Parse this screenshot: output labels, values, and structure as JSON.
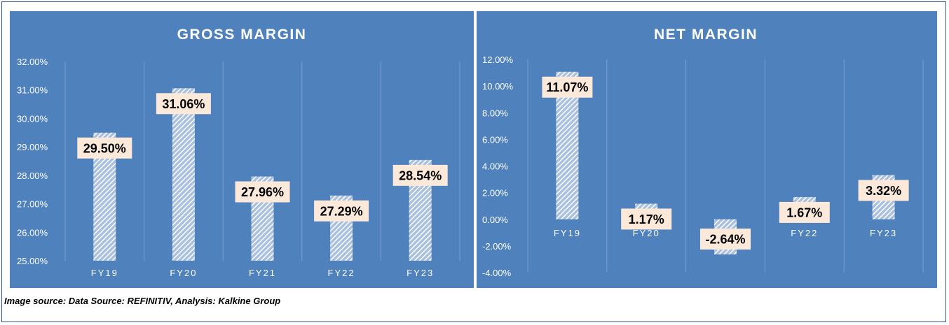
{
  "source_note": "Image source: Data Source: REFINITIV, Analysis: Kalkine Group",
  "colors": {
    "panel_bg": "#4f81bd",
    "gridline": "#7aa0cf",
    "bar_stripe": "#ffffff",
    "bar_stripe_bg": "#a9c0e0",
    "label_bg": "#fde9d9",
    "text": "#ffffff"
  },
  "chart_data": [
    {
      "type": "bar",
      "title": "GROSS MARGIN",
      "categories": [
        "FY19",
        "FY20",
        "FY21",
        "FY22",
        "FY23"
      ],
      "values": [
        29.5,
        31.06,
        27.96,
        27.29,
        28.54
      ],
      "data_labels": [
        "29.50%",
        "31.06%",
        "27.96%",
        "27.29%",
        "28.54%"
      ],
      "ylim": [
        25,
        32
      ],
      "yticks": [
        "25.00%",
        "26.00%",
        "27.00%",
        "28.00%",
        "29.00%",
        "30.00%",
        "31.00%",
        "32.00%"
      ],
      "xlabel": "",
      "ylabel": "",
      "grid": "vertical"
    },
    {
      "type": "bar",
      "title": "NET MARGIN",
      "categories": [
        "FY19",
        "FY20",
        "FY21",
        "FY22",
        "FY23"
      ],
      "values": [
        11.07,
        1.17,
        -2.64,
        1.67,
        3.32
      ],
      "data_labels": [
        "11.07%",
        "1.17%",
        "-2.64%",
        "1.67%",
        "3.32%"
      ],
      "ylim": [
        -4,
        12
      ],
      "yticks": [
        "-4.00%",
        "-2.00%",
        "0.00%",
        "2.00%",
        "4.00%",
        "6.00%",
        "8.00%",
        "10.00%",
        "12.00%"
      ],
      "xlabel": "",
      "ylabel": "",
      "grid": "vertical"
    }
  ]
}
